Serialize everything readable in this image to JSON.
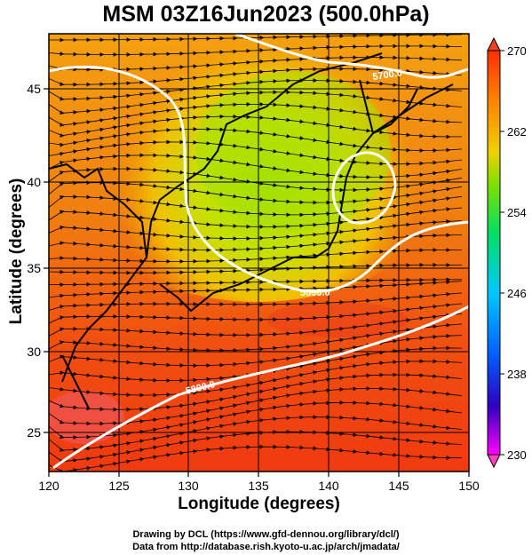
{
  "title": "MSM 03Z16Jun2023 (500.0hPa)",
  "x_axis": {
    "label": "Longitude (degrees)",
    "ticks": [
      "120",
      "125",
      "130",
      "135",
      "140",
      "145",
      "150"
    ]
  },
  "y_axis": {
    "label": "Latitude  (degrees)",
    "ticks": [
      "25",
      "30",
      "35",
      "40",
      "45"
    ]
  },
  "colorbar": {
    "ticks": [
      "270",
      "262",
      "254",
      "246",
      "238",
      "230"
    ],
    "range": [
      230,
      270
    ],
    "colors": [
      "#ff00ff",
      "#3000c0",
      "#0060ff",
      "#00c8ff",
      "#00e060",
      "#80e000",
      "#f0d000",
      "#ff8000",
      "#ff3000"
    ]
  },
  "contours": [
    {
      "label": "5700.0"
    },
    {
      "label": "5800.0"
    }
  ],
  "credits": {
    "line1": "Drawing by DCL (https://www.gfd-dennou.org/library/dcl/)",
    "line2": "Data from http://database.rish.kyoto-u.ac.jp/arch/jmadata/"
  },
  "chart_data": {
    "type": "heatmap",
    "title": "MSM 03Z16Jun2023 (500.0hPa)",
    "xlabel": "Longitude (degrees)",
    "ylabel": "Latitude  (degrees)",
    "xlim": [
      120,
      150
    ],
    "ylim": [
      22.4,
      47.6
    ],
    "x_ticks": [
      120,
      125,
      130,
      135,
      140,
      145,
      150
    ],
    "y_ticks": [
      25,
      30,
      35,
      40,
      45
    ],
    "colorbar_ticks": [
      270,
      262,
      254,
      246,
      238,
      230
    ],
    "colorbar_range": [
      230,
      270
    ],
    "contour_labels": [
      "5700.0",
      "5800.0"
    ],
    "overlays": [
      "streamlines",
      "coastlines",
      "lat-lon grid"
    ]
  }
}
